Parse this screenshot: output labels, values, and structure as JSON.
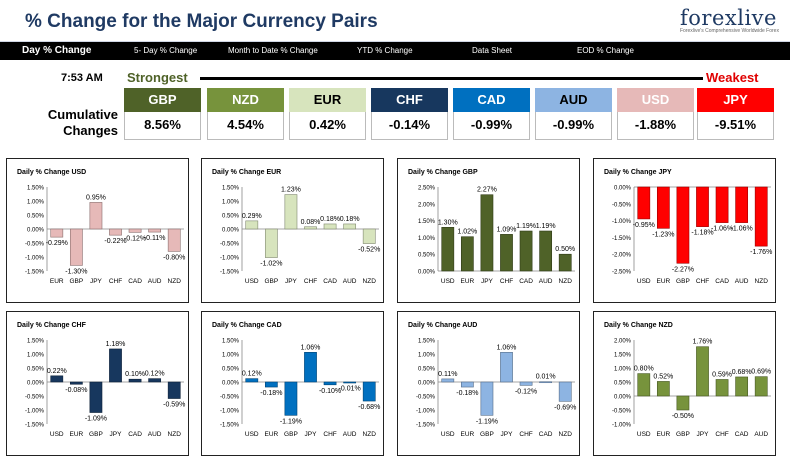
{
  "header": {
    "title": "% Change for the Major Currency Pairs",
    "logo_text": "forexlive",
    "logo_tagline": "Forexlive's Comprehensive Worldwide Forex"
  },
  "tabs": [
    {
      "label": "Day % Change",
      "active": true
    },
    {
      "label": "5- Day % Change",
      "active": false
    },
    {
      "label": "Month to Date % Change",
      "active": false
    },
    {
      "label": "YTD % Change",
      "active": false
    },
    {
      "label": "Data Sheet",
      "active": false
    },
    {
      "label": "EOD % Change",
      "active": false
    }
  ],
  "summary": {
    "time": "7:53 AM",
    "strongest_label": "Strongest",
    "weakest_label": "Weakest",
    "cumulative_label": "Cumulative Changes",
    "currencies": [
      {
        "code": "GBP",
        "value": "8.56%",
        "color": "#4f6228",
        "text_color": "#ffffff"
      },
      {
        "code": "NZD",
        "value": "4.54%",
        "color": "#77933c",
        "text_color": "#ffffff"
      },
      {
        "code": "EUR",
        "value": "0.42%",
        "color": "#d7e4bd",
        "text_color": "#000000"
      },
      {
        "code": "CHF",
        "value": "-0.14%",
        "color": "#17375e",
        "text_color": "#ffffff"
      },
      {
        "code": "CAD",
        "value": "-0.99%",
        "color": "#0070c0",
        "text_color": "#ffffff"
      },
      {
        "code": "AUD",
        "value": "-0.99%",
        "color": "#8db4e2",
        "text_color": "#000000"
      },
      {
        "code": "USD",
        "value": "-1.88%",
        "color": "#e6b9b8",
        "text_color": "#ffffff"
      },
      {
        "code": "JPY",
        "value": "-9.51%",
        "color": "#ff0000",
        "text_color": "#ffffff"
      }
    ]
  },
  "chart_data": [
    {
      "type": "bar",
      "title": "Daily % Change USD",
      "categories": [
        "EUR",
        "GBP",
        "JPY",
        "CHF",
        "CAD",
        "AUD",
        "NZD"
      ],
      "values": [
        -0.29,
        -1.3,
        0.95,
        -0.22,
        -0.12,
        -0.11,
        -0.8
      ],
      "labels": [
        "-0.29%",
        "-1.30%",
        "0.95%",
        "-0.22%",
        "-0.12%",
        "-0.11%",
        "-0.80%"
      ],
      "yticks": [
        "1.50%",
        "1.00%",
        "0.50%",
        "0.00%",
        "-0.50%",
        "-1.00%",
        "-1.50%"
      ],
      "ylim": [
        -1.5,
        1.5
      ],
      "color": "#e6b9b8"
    },
    {
      "type": "bar",
      "title": "Daily % Change EUR",
      "categories": [
        "USD",
        "GBP",
        "JPY",
        "CHF",
        "CAD",
        "AUD",
        "NZD"
      ],
      "values": [
        0.29,
        -1.02,
        1.23,
        0.08,
        0.18,
        0.18,
        -0.52
      ],
      "labels": [
        "0.29%",
        "-1.02%",
        "1.23%",
        "0.08%",
        "0.18%",
        "0.18%",
        "-0.52%"
      ],
      "yticks": [
        "1.50%",
        "1.00%",
        "0.50%",
        "0.00%",
        "-0.50%",
        "-1.00%",
        "-1.50%"
      ],
      "ylim": [
        -1.5,
        1.5
      ],
      "color": "#d7e4bd"
    },
    {
      "type": "bar",
      "title": "Daily % Change GBP",
      "categories": [
        "USD",
        "EUR",
        "JPY",
        "CHF",
        "CAD",
        "AUD",
        "NZD"
      ],
      "values": [
        1.3,
        1.02,
        2.27,
        1.09,
        1.19,
        1.19,
        0.5
      ],
      "labels": [
        "1.30%",
        "1.02%",
        "2.27%",
        "1.09%",
        "1.19%",
        "1.19%",
        "0.50%"
      ],
      "yticks": [
        "2.50%",
        "2.00%",
        "1.50%",
        "1.00%",
        "0.50%",
        "0.00%"
      ],
      "ylim": [
        0,
        2.5
      ],
      "color": "#4f6228"
    },
    {
      "type": "bar",
      "title": "Daily % Change JPY",
      "categories": [
        "USD",
        "EUR",
        "GBP",
        "CHF",
        "CAD",
        "AUD",
        "NZD"
      ],
      "values": [
        -0.95,
        -1.23,
        -2.27,
        -1.18,
        -1.06,
        -1.06,
        -1.76
      ],
      "labels": [
        "-0.95%",
        "-1.23%",
        "-2.27%",
        "-1.18%",
        "-1.06%",
        "-1.06%",
        "-1.76%"
      ],
      "yticks": [
        "0.00%",
        "-0.50%",
        "-1.00%",
        "-1.50%",
        "-2.00%",
        "-2.50%"
      ],
      "ylim": [
        -2.5,
        0
      ],
      "color": "#ff0000"
    },
    {
      "type": "bar",
      "title": "Daily % Change CHF",
      "categories": [
        "USD",
        "EUR",
        "GBP",
        "JPY",
        "CAD",
        "AUD",
        "NZD"
      ],
      "values": [
        0.22,
        -0.08,
        -1.09,
        1.18,
        0.1,
        0.12,
        -0.59
      ],
      "labels": [
        "0.22%",
        "-0.08%",
        "-1.09%",
        "1.18%",
        "0.10%",
        "0.12%",
        "-0.59%"
      ],
      "yticks": [
        "1.50%",
        "1.00%",
        "0.50%",
        "0.00%",
        "-0.50%",
        "-1.00%",
        "-1.50%"
      ],
      "ylim": [
        -1.5,
        1.5
      ],
      "color": "#17375e"
    },
    {
      "type": "bar",
      "title": "Daily % Change CAD",
      "categories": [
        "USD",
        "EUR",
        "GBP",
        "JPY",
        "CHF",
        "AUD",
        "NZD"
      ],
      "values": [
        0.12,
        -0.18,
        -1.19,
        1.06,
        -0.1,
        -0.01,
        -0.68
      ],
      "labels": [
        "0.12%",
        "-0.18%",
        "-1.19%",
        "1.06%",
        "-0.10%",
        "-0.01%",
        "-0.68%"
      ],
      "yticks": [
        "1.50%",
        "1.00%",
        "0.50%",
        "0.00%",
        "-0.50%",
        "-1.00%",
        "-1.50%"
      ],
      "ylim": [
        -1.5,
        1.5
      ],
      "color": "#0070c0"
    },
    {
      "type": "bar",
      "title": "Daily % Change AUD",
      "categories": [
        "USD",
        "EUR",
        "GBP",
        "JPY",
        "CHF",
        "CAD",
        "NZD"
      ],
      "values": [
        0.11,
        -0.18,
        -1.19,
        1.06,
        -0.12,
        0.01,
        -0.69
      ],
      "labels": [
        "0.11%",
        "-0.18%",
        "-1.19%",
        "1.06%",
        "-0.12%",
        "0.01%",
        "-0.69%"
      ],
      "yticks": [
        "1.50%",
        "1.00%",
        "0.50%",
        "0.00%",
        "-0.50%",
        "-1.00%",
        "-1.50%"
      ],
      "ylim": [
        -1.5,
        1.5
      ],
      "color": "#8db4e2"
    },
    {
      "type": "bar",
      "title": "Daily % Change NZD",
      "categories": [
        "USD",
        "EUR",
        "GBP",
        "JPY",
        "CHF",
        "CAD",
        "AUD"
      ],
      "values": [
        0.8,
        0.52,
        -0.5,
        1.76,
        0.59,
        0.68,
        0.69
      ],
      "labels": [
        "0.80%",
        "0.52%",
        "-0.50%",
        "1.76%",
        "0.59%",
        "0.68%",
        "0.69%"
      ],
      "yticks": [
        "2.00%",
        "1.50%",
        "1.00%",
        "0.50%",
        "0.00%",
        "-0.50%",
        "-1.00%"
      ],
      "ylim": [
        -1.0,
        2.0
      ],
      "color": "#77933c"
    }
  ]
}
